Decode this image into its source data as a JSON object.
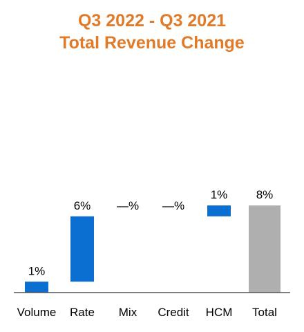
{
  "chart_data": {
    "type": "bar",
    "subtype": "waterfall",
    "title": "Q3 2022 - Q3 2021",
    "subtitle": "Total Revenue Change",
    "categories": [
      "Volume",
      "Rate",
      "Mix",
      "Credit",
      "HCM",
      "Total"
    ],
    "values": [
      1,
      6,
      0,
      0,
      1,
      8
    ],
    "data_labels": [
      "1%",
      "6%",
      "—%",
      "—%",
      "1%",
      "8%"
    ],
    "segments": [
      {
        "start": 0,
        "end": 1
      },
      {
        "start": 1,
        "end": 7
      },
      {
        "start": 7,
        "end": 7
      },
      {
        "start": 7,
        "end": 7
      },
      {
        "start": 7,
        "end": 8
      },
      {
        "start": 0,
        "end": 8
      }
    ],
    "ylim": [
      0,
      8.6
    ],
    "grid": false,
    "legend": "none",
    "colors": {
      "title": "#E07B2A",
      "increase": "#0A6FD0",
      "total": "#AFAFAF",
      "axis": "#555555"
    }
  }
}
